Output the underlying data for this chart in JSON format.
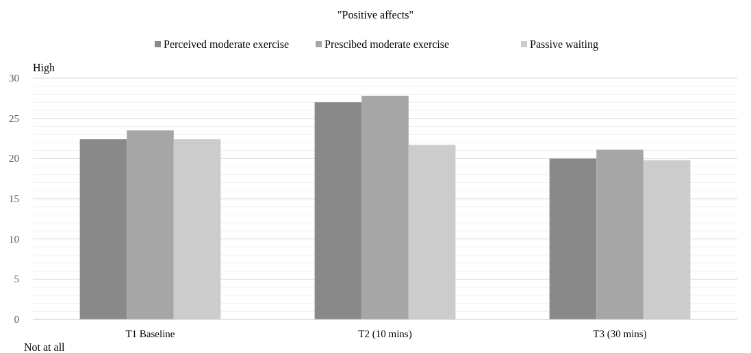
{
  "chart_data": {
    "type": "bar",
    "title": "\"Positive affects\"",
    "categories": [
      "T1 Baseline",
      "T2 (10 mins)",
      "T3 (30 mins)"
    ],
    "series": [
      {
        "name": "Perceived moderate exercise",
        "color": "#898989",
        "values": [
          22.4,
          27.0,
          20.0
        ]
      },
      {
        "name": "Prescibed moderate exercise",
        "color": "#a6a6a6",
        "values": [
          23.5,
          27.8,
          21.1
        ]
      },
      {
        "name": "Passive waiting",
        "color": "#cccccc",
        "values": [
          22.4,
          21.7,
          19.8
        ]
      }
    ],
    "ylim": [
      0,
      30
    ],
    "yticks": [
      0,
      {
        "value": 1,
        "label": null
      },
      {
        "value": 2,
        "label": null
      },
      {
        "value": 3,
        "label": null
      },
      {
        "value": 4,
        "label": null
      },
      5,
      {
        "value": 6,
        "label": null
      },
      {
        "value": 7,
        "label": null
      },
      {
        "value": 8,
        "label": null
      },
      {
        "value": 9,
        "label": null
      },
      10,
      {
        "value": 11,
        "label": null
      },
      {
        "value": 12,
        "label": null
      },
      {
        "value": 13,
        "label": null
      },
      {
        "value": 14,
        "label": null
      },
      15,
      {
        "value": 16,
        "label": null
      },
      {
        "value": 17,
        "label": null
      },
      {
        "value": 18,
        "label": null
      },
      {
        "value": 19,
        "label": null
      },
      20,
      {
        "value": 21,
        "label": null
      },
      {
        "value": 22,
        "label": null
      },
      {
        "value": 23,
        "label": null
      },
      {
        "value": 24,
        "label": null
      },
      25,
      {
        "value": 26,
        "label": null
      },
      {
        "value": 27,
        "label": null
      },
      {
        "value": 28,
        "label": null
      },
      {
        "value": 29,
        "label": null
      },
      30
    ],
    "grid": "y",
    "legend": "top",
    "annotations": [
      "High",
      "Not at all"
    ]
  }
}
